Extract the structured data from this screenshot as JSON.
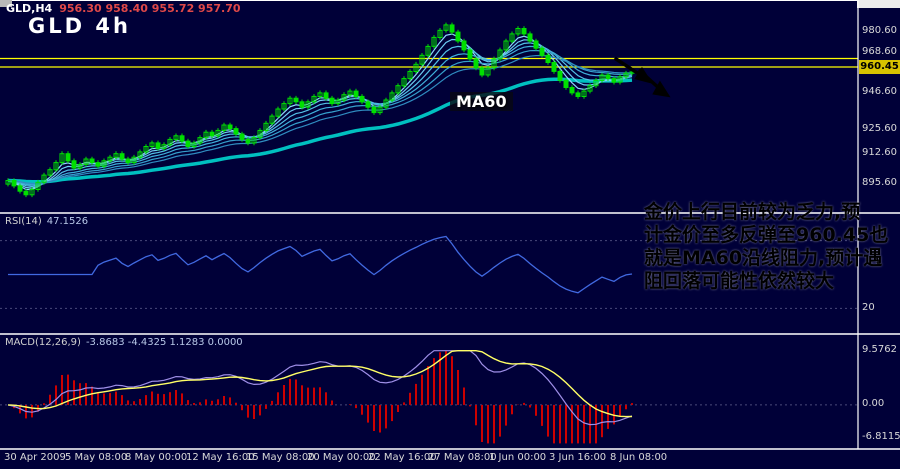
{
  "colors": {
    "background": "#000038",
    "panel_border": "#ffffff",
    "candle": "#00e000",
    "ma60": "#00c0c0",
    "resistance": "#ffff00",
    "price_tag_bg": "#d8c300",
    "rsi_line": "#4169e1",
    "macd_histogram": "#cc0000",
    "macd_signal": "#ffff66",
    "macd_line": "#9f8fe8",
    "axis_text": "#d8d8d8",
    "annotation_text": "#000000"
  },
  "header": {
    "symbol_title": "GLD,H4",
    "ohlc": "956.30 958.40 955.72 957.70",
    "chart_label": "GLD 4h"
  },
  "price_axis": {
    "current_price": "960.45"
  },
  "annotation": {
    "lines": [
      "金价上行目前较为乏力,预",
      "计金价至多反弹至960.45也",
      "就是MA60沿线阻力,预计遇",
      "阻回落可能性依然较大"
    ]
  },
  "chart_data": {
    "type": "candlestick",
    "symbol": "GLD",
    "timeframe": "H4",
    "title": "GLD,H4 956.30 958.40 955.72 957.70",
    "ohlc_display": {
      "open": "956.30",
      "high": "958.40",
      "low": "955.72",
      "close": "957.70"
    },
    "closes": [
      897,
      894,
      891,
      889,
      892,
      896,
      900,
      903,
      907,
      912,
      908,
      904,
      906,
      909,
      907,
      905,
      908,
      910,
      912,
      909,
      907,
      910,
      913,
      916,
      918,
      915,
      917,
      920,
      922,
      919,
      916,
      918,
      921,
      924,
      922,
      925,
      928,
      926,
      923,
      920,
      918,
      921,
      925,
      929,
      933,
      937,
      940,
      943,
      941,
      938,
      941,
      944,
      946,
      943,
      940,
      942,
      945,
      947,
      944,
      941,
      938,
      935,
      938,
      942,
      946,
      950,
      954,
      958,
      962,
      967,
      972,
      977,
      981,
      984,
      980,
      975,
      970,
      965,
      960,
      956,
      960,
      965,
      970,
      975,
      979,
      982,
      979,
      975,
      971,
      967,
      963,
      958,
      953,
      949,
      946,
      944,
      947,
      950,
      953,
      956,
      954,
      952,
      955,
      957,
      957.7
    ],
    "resistance_levels": [
      965.2,
      960.45
    ],
    "current_price": 960.45,
    "indicators": {
      "ma60_label": "MA60",
      "rsi": {
        "label": "RSI(14)",
        "value": "47.1526",
        "level_label": "20",
        "levels": [
          20,
          80
        ]
      },
      "macd": {
        "label": "MACD(12,26,9)",
        "values": "-3.8683 -4.4325 1.1283 0.0000",
        "axis_max": "9.5762",
        "axis_zero": "0.00",
        "axis_min": "-6.8115"
      }
    },
    "x_axis_labels": [
      "30 Apr 2009",
      "5 May 08:00",
      "8 May 00:00",
      "12 May 16:00",
      "15 May 08:00",
      "20 May 00:00",
      "22 May 16:00",
      "27 May 08:00",
      "1 Jun 00:00",
      "3 Jun 16:00",
      "8 Jun 08:00"
    ],
    "y_axis_labels": [
      "980.60",
      "968.60",
      "946.60",
      "925.60",
      "912.60",
      "895.60"
    ]
  }
}
